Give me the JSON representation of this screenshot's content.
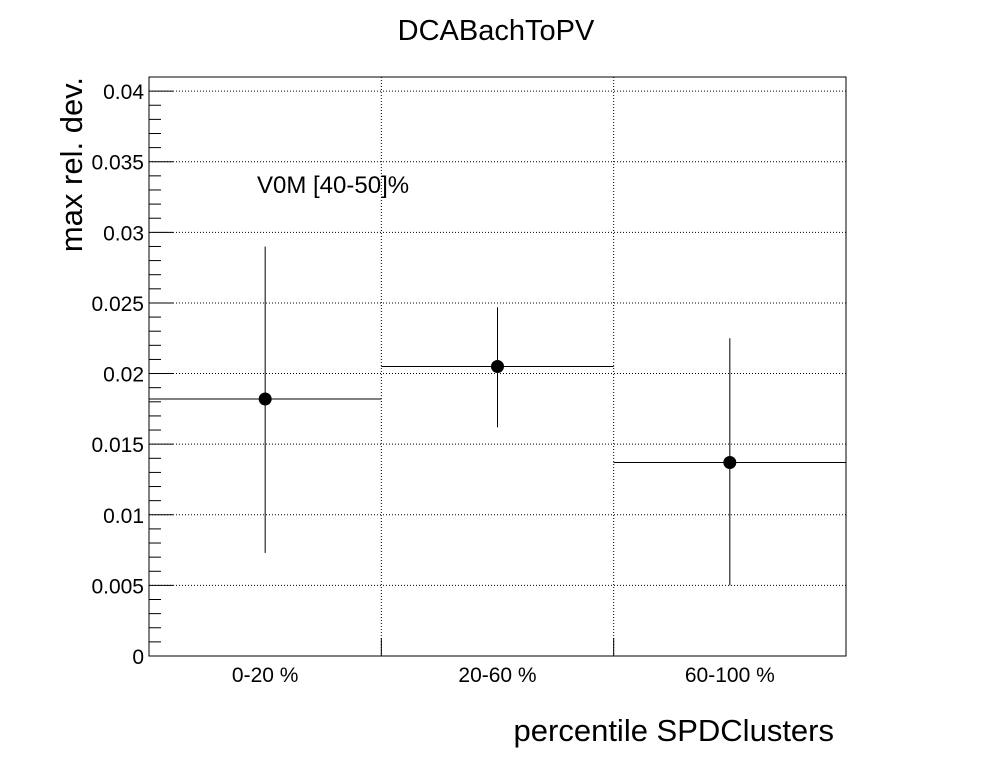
{
  "chart_data": {
    "type": "scatter",
    "title": "DCABachToPV",
    "xlabel": "percentile SPDClusters",
    "ylabel": "max rel. dev.",
    "annotation": "V0M [40-50]%",
    "categories": [
      "0-20 %",
      "20-60 %",
      "60-100 %"
    ],
    "ylim": [
      0,
      0.041
    ],
    "y_ticks": [
      0,
      0.005,
      0.01,
      0.015,
      0.02,
      0.025,
      0.03,
      0.035,
      0.04
    ],
    "y_tick_labels": [
      "0",
      "0.005",
      "0.01",
      "0.015",
      "0.02",
      "0.025",
      "0.03",
      "0.035",
      "0.04"
    ],
    "grid": true,
    "points": [
      {
        "category": "0-20 %",
        "y": 0.0182,
        "y_err_low": 0.0109,
        "y_err_high": 0.0108
      },
      {
        "category": "20-60 %",
        "y": 0.0205,
        "y_err_low": 0.0043,
        "y_err_high": 0.0042
      },
      {
        "category": "60-100 %",
        "y": 0.0137,
        "y_err_low": 0.0087,
        "y_err_high": 0.0088
      }
    ],
    "marker_color": "#000000"
  }
}
